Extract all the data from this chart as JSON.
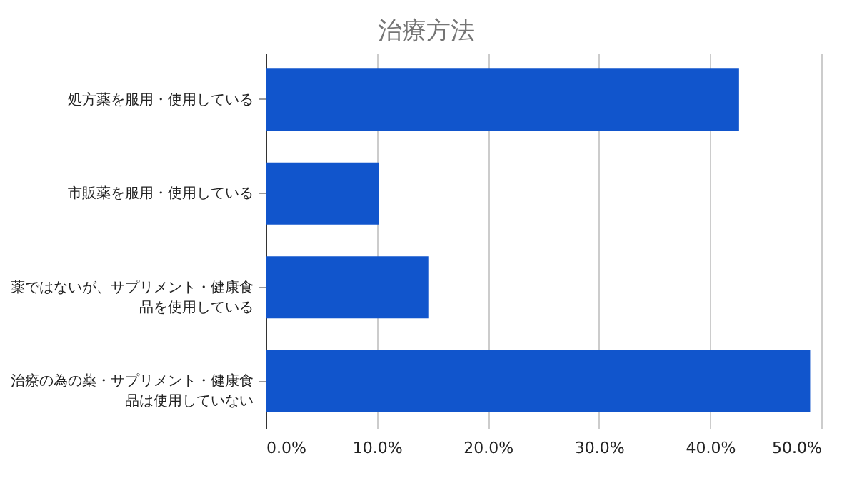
{
  "chart_data": {
    "type": "bar",
    "orientation": "horizontal",
    "title": "治療方法",
    "categories": [
      "処方薬を服用・使用している",
      "市販薬を服用・使用している",
      "薬ではないが、サプリメント・健康食品を使用している",
      "治療の為の薬・サプリメント・健康食品は使用していない"
    ],
    "values": [
      42.6,
      10.2,
      14.7,
      49.0
    ],
    "color": "#1155cc",
    "xlim": [
      0,
      50
    ],
    "xticks": [
      {
        "value": 0,
        "label": "0.0%"
      },
      {
        "value": 10,
        "label": "10.0%"
      },
      {
        "value": 20,
        "label": "20.0%"
      },
      {
        "value": 30,
        "label": "30.0%"
      },
      {
        "value": 40,
        "label": "40.0%"
      },
      {
        "value": 50,
        "label": "50.0%"
      }
    ],
    "grid": "x"
  }
}
